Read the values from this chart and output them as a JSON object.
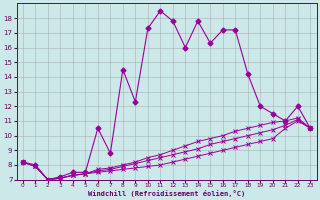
{
  "xlabel": "Windchill (Refroidissement éolien,°C)",
  "bg_color": "#cce8e8",
  "grid_color": "#999999",
  "line_color": "#990099",
  "x_hours": [
    0,
    1,
    2,
    3,
    4,
    5,
    6,
    7,
    8,
    9,
    10,
    11,
    12,
    13,
    14,
    15,
    16,
    17,
    18,
    19,
    20,
    21,
    22,
    23
  ],
  "temp_line": [
    8.2,
    8.0,
    7.0,
    7.2,
    7.5,
    7.5,
    10.5,
    8.8,
    14.5,
    12.3,
    17.3,
    18.5,
    17.8,
    16.0,
    17.8,
    16.3,
    17.2,
    17.2,
    14.2,
    12.0,
    11.5,
    11.0,
    12.0,
    10.5
  ],
  "wc_line1": [
    8.2,
    7.9,
    7.0,
    7.1,
    7.3,
    7.4,
    7.5,
    7.6,
    7.7,
    7.8,
    7.9,
    8.0,
    8.2,
    8.4,
    8.6,
    8.8,
    9.0,
    9.2,
    9.4,
    9.6,
    9.8,
    10.5,
    11.0,
    10.5
  ],
  "wc_line2": [
    8.2,
    7.9,
    7.0,
    7.1,
    7.3,
    7.4,
    7.6,
    7.7,
    7.9,
    8.1,
    8.3,
    8.5,
    8.7,
    8.9,
    9.1,
    9.4,
    9.6,
    9.8,
    10.0,
    10.2,
    10.4,
    10.7,
    11.1,
    10.5
  ],
  "wc_line3": [
    8.2,
    7.9,
    7.0,
    7.1,
    7.3,
    7.4,
    7.7,
    7.8,
    8.0,
    8.2,
    8.5,
    8.7,
    9.0,
    9.3,
    9.6,
    9.8,
    10.0,
    10.3,
    10.5,
    10.7,
    10.9,
    11.0,
    11.2,
    10.5
  ],
  "ylim": [
    7,
    19
  ],
  "xlim": [
    -0.5,
    23.5
  ],
  "yticks": [
    7,
    8,
    9,
    10,
    11,
    12,
    13,
    14,
    15,
    16,
    17,
    18
  ],
  "xticks": [
    0,
    1,
    2,
    3,
    4,
    5,
    6,
    7,
    8,
    9,
    10,
    11,
    12,
    13,
    14,
    15,
    16,
    17,
    18,
    19,
    20,
    21,
    22,
    23
  ]
}
